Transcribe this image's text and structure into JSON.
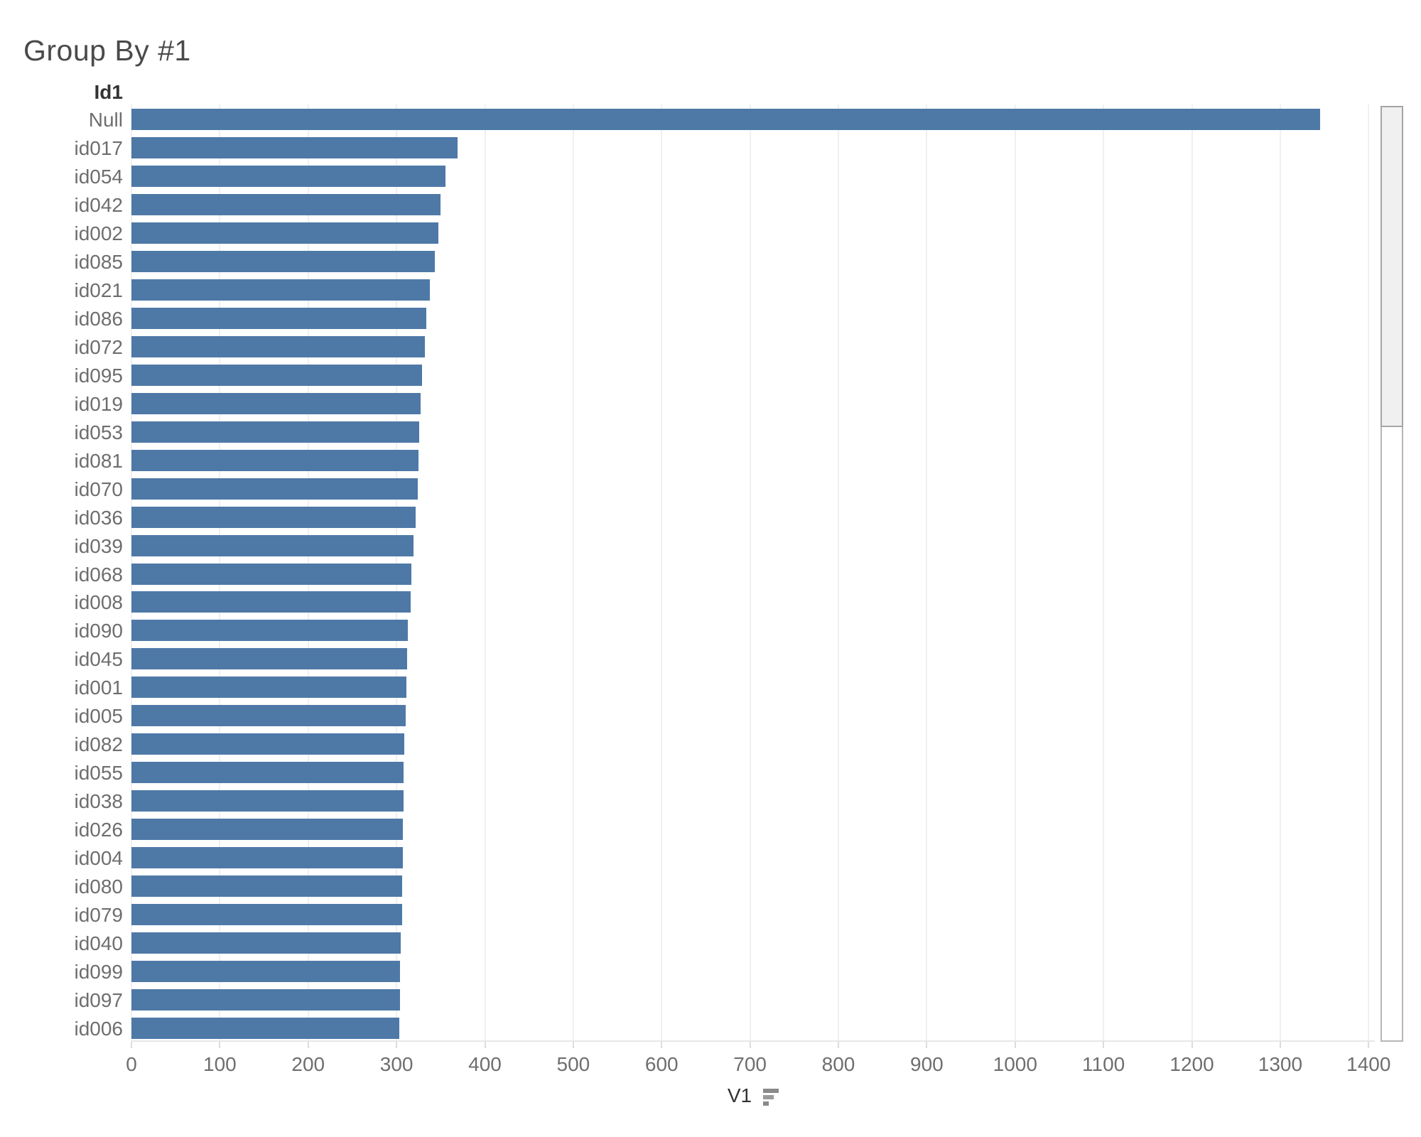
{
  "title": "Group By #1",
  "column_header": "Id1",
  "xaxis": {
    "label": "V1",
    "sort_indicator": "descending-sort-icon"
  },
  "chart_data": {
    "type": "bar",
    "orientation": "horizontal",
    "title": "Group By #1",
    "category_field": "Id1",
    "value_field": "V1",
    "sort": "descending by V1",
    "categories": [
      "Null",
      "id017",
      "id054",
      "id042",
      "id002",
      "id085",
      "id021",
      "id086",
      "id072",
      "id095",
      "id019",
      "id053",
      "id081",
      "id070",
      "id036",
      "id039",
      "id068",
      "id008",
      "id090",
      "id045",
      "id001",
      "id005",
      "id082",
      "id055",
      "id038",
      "id026",
      "id004",
      "id080",
      "id079",
      "id040",
      "id099",
      "id097",
      "id006"
    ],
    "values": [
      1345,
      369,
      355,
      350,
      347,
      343,
      338,
      334,
      332,
      329,
      327,
      326,
      325,
      324,
      322,
      319,
      317,
      316,
      313,
      312,
      311,
      310,
      309,
      308,
      308,
      307,
      307,
      306,
      306,
      305,
      304,
      304,
      303
    ],
    "x_ticks": [
      0,
      100,
      200,
      300,
      400,
      500,
      600,
      700,
      800,
      900,
      1000,
      1100,
      1200,
      1300,
      1400
    ],
    "xlim": [
      0,
      1407
    ],
    "grid": "vertical only",
    "legend": "none"
  },
  "colors": {
    "bar": "#4e79a7",
    "title_text": "#4a4a4a",
    "header_text": "#333333",
    "label_text": "#6e6e6e",
    "gridline": "#f0f0f0",
    "axis_line": "#e7e7e7",
    "scrollbar_track_border": "#b6b6b6",
    "scrollbar_thumb_fill": "#f0f0f0",
    "scrollbar_thumb_border": "#a5a5a5"
  }
}
